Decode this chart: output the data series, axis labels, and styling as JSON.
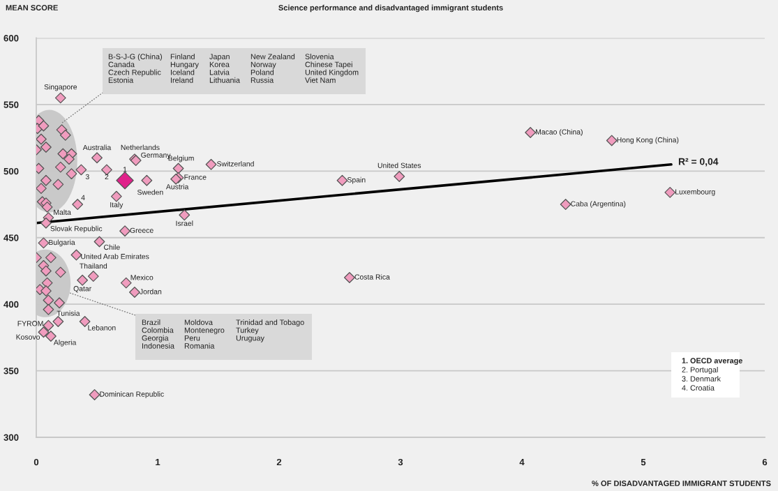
{
  "chart_data": {
    "type": "scatter",
    "title": "Science performance and disadvantaged immigrant students",
    "xlabel": "% OF DISADVANTAGED IMMIGRANT STUDENTS",
    "ylabel": "MEAN SCORE",
    "xlim": [
      0,
      6
    ],
    "xticks": [
      0,
      1,
      2,
      3,
      4,
      5,
      6
    ],
    "ylim": [
      300,
      600
    ],
    "yticks": [
      300,
      350,
      400,
      450,
      500,
      550,
      600
    ],
    "grid": "y",
    "marker": "diamond",
    "series": [
      {
        "color": "#f09cbe",
        "x": [
          0.2,
          0.5,
          0.81,
          0.82,
          1.17,
          1.44,
          0.37,
          0.58,
          0.91,
          1.17,
          1.15,
          0.34,
          0.66,
          0.1,
          0.08,
          1.22,
          0.73,
          0.06,
          0.52,
          0.33,
          0.47,
          0.38,
          0.74,
          0.81,
          0.18,
          0.4,
          0.1,
          0.06,
          0.12,
          0.48,
          2.58,
          2.52,
          2.99,
          4.07,
          4.74,
          5.22,
          4.36,
          0.02,
          0.01,
          0.06,
          0.04,
          0.0,
          0.08,
          0.21,
          0.24,
          0.22,
          0.29,
          0.27,
          0.02,
          0.2,
          0.29,
          0.08,
          0.04,
          0.18,
          0.05,
          0.08,
          0.09,
          0.0,
          0.12,
          0.06,
          0.08,
          0.2,
          0.09,
          0.03,
          0.08,
          0.1,
          0.19,
          0.1
        ],
        "values": [
          555,
          510,
          509,
          508,
          502,
          505,
          501,
          501,
          493,
          495,
          494,
          475,
          481,
          465,
          461,
          467,
          455,
          446,
          447,
          437,
          421,
          418,
          416,
          409,
          387,
          387,
          384,
          379,
          376,
          332,
          420,
          493,
          496,
          529,
          523,
          484,
          475,
          538,
          532,
          534,
          524,
          516,
          518,
          531,
          527,
          513,
          513,
          509,
          502,
          503,
          498,
          493,
          487,
          490,
          477,
          476,
          473,
          435,
          435,
          429,
          425,
          424,
          416,
          411,
          410,
          403,
          401,
          396
        ]
      },
      {
        "color": "#e0218a",
        "x": [
          0.73
        ],
        "values": [
          493
        ]
      },
      {
        "type": "line",
        "color": "#000000",
        "line_style": "solid",
        "marker": "none",
        "x": [
          0,
          5.23
        ],
        "values": [
          461,
          505
        ]
      }
    ],
    "annotations": [
      {
        "text": "Singapore",
        "x": 0.2,
        "y": 555
      },
      {
        "text": "Australia",
        "x": 0.5,
        "y": 510
      },
      {
        "text": "Netherlands",
        "x": 0.81,
        "y": 509
      },
      {
        "text": "Germany",
        "x": 0.82,
        "y": 508
      },
      {
        "text": "Belgium",
        "x": 1.17,
        "y": 502
      },
      {
        "text": "Switzerland",
        "x": 1.44,
        "y": 505
      },
      {
        "text": "3",
        "x": 0.37,
        "y": 501
      },
      {
        "text": "2",
        "x": 0.58,
        "y": 501
      },
      {
        "text": "1",
        "x": 0.73,
        "y": 493
      },
      {
        "text": "Sweden",
        "x": 0.91,
        "y": 493
      },
      {
        "text": "France",
        "x": 1.17,
        "y": 495
      },
      {
        "text": "Austria",
        "x": 1.15,
        "y": 494
      },
      {
        "text": "4",
        "x": 0.34,
        "y": 475
      },
      {
        "text": "Italy",
        "x": 0.66,
        "y": 481
      },
      {
        "text": "Malta",
        "x": 0.1,
        "y": 465
      },
      {
        "text": "Slovak Republic",
        "x": 0.08,
        "y": 461
      },
      {
        "text": "Israel",
        "x": 1.22,
        "y": 467
      },
      {
        "text": "Greece",
        "x": 0.73,
        "y": 455
      },
      {
        "text": "Bulgaria",
        "x": 0.06,
        "y": 446
      },
      {
        "text": "Chile",
        "x": 0.52,
        "y": 447
      },
      {
        "text": "United Arab Emirates",
        "x": 0.33,
        "y": 437
      },
      {
        "text": "Thailand",
        "x": 0.47,
        "y": 421
      },
      {
        "text": "Qatar",
        "x": 0.38,
        "y": 418
      },
      {
        "text": "Mexico",
        "x": 0.74,
        "y": 416
      },
      {
        "text": "Jordan",
        "x": 0.81,
        "y": 409
      },
      {
        "text": "Tunisia",
        "x": 0.18,
        "y": 387
      },
      {
        "text": "Lebanon",
        "x": 0.4,
        "y": 387
      },
      {
        "text": "FYROM",
        "x": 0.1,
        "y": 384
      },
      {
        "text": "Kosovo",
        "x": 0.06,
        "y": 379
      },
      {
        "text": "Algeria",
        "x": 0.12,
        "y": 376
      },
      {
        "text": "Dominican Republic",
        "x": 0.48,
        "y": 332
      },
      {
        "text": "Costa Rica",
        "x": 2.58,
        "y": 420
      },
      {
        "text": "Spain",
        "x": 2.52,
        "y": 493
      },
      {
        "text": "United States",
        "x": 2.99,
        "y": 496
      },
      {
        "text": "Macao (China)",
        "x": 4.07,
        "y": 529
      },
      {
        "text": "Hong Kong (China)",
        "x": 4.74,
        "y": 523
      },
      {
        "text": "Luxembourg",
        "x": 5.22,
        "y": 484
      },
      {
        "text": "Caba (Argentina)",
        "x": 4.36,
        "y": 475
      },
      {
        "text": "R² = 0,04",
        "x": 5.23,
        "y": 505
      },
      "B-S-J-G (China)\nCanada\nCzech Republic\nEstonia",
      "Finland\nHungary\nIceland\nIreland",
      "Japan\nKorea\nLatvia\nLithuania",
      "New Zealand\nNorway\nPoland\nRussia",
      "Slovenia\nChinese Tapei\nUnited Kingdom\nViet Nam",
      "Brazil\nColombia\nGeorgia\nIndonesia",
      "Moldova\nMontenegro\nPeru\nRomania",
      "Trinidad and Tobago\nTurkey\nUruguay",
      "1. OECD average",
      "2. Portugal",
      "3. Denmark",
      "4. Croatia"
    ]
  }
}
